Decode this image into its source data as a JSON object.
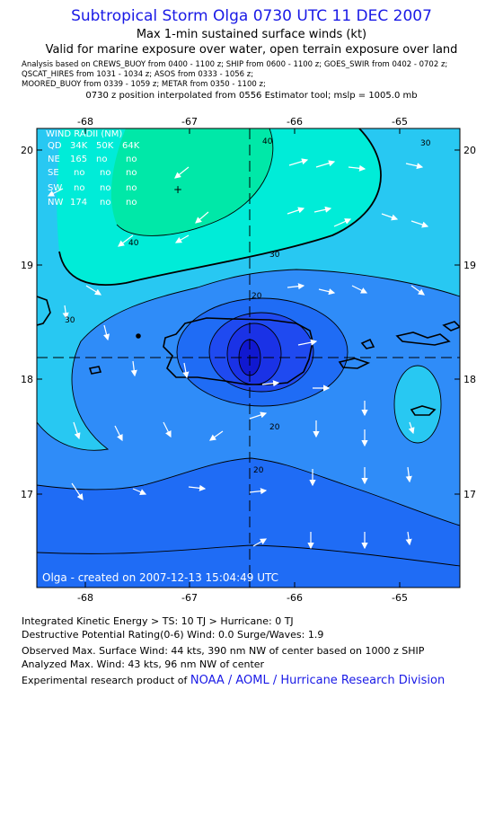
{
  "header": {
    "title": "Subtropical Storm Olga 0730 UTC 11 DEC 2007",
    "subtitle": "Max 1-min sustained surface winds (kt)",
    "valid": "Valid for marine exposure over water, open terrain exposure over land",
    "analysis_lines": [
      "Analysis based on  CREWS_BUOY from 0400 - 1100 z;  SHIP from 0600 - 1100 z;  GOES_SWIR from 0402 - 0702 z;",
      "QSCAT_HIRES from 1031 - 1034 z;  ASOS from 0333 - 1056 z;",
      "MOORED_BUOY from 0339 - 1059 z;  METAR from 0350 - 1100 z;"
    ],
    "position_note": "0730 z position interpolated from 0556 Estimator tool; mslp = 1005.0 mb"
  },
  "map": {
    "lon_labels": [
      "-68",
      "-67",
      "-66",
      "-65"
    ],
    "lat_labels": [
      "20",
      "19",
      "18",
      "17"
    ],
    "contour_labels": [
      "40",
      "30",
      "30",
      "20",
      "20",
      "20",
      "30",
      "40"
    ],
    "credit": "Olga  -  created on 2007-12-13 15:04:49 UTC",
    "colors": {
      "c15": "#1f6cf5",
      "c20": "#2f8cf8",
      "c30": "#28c8f2",
      "c40": "#00ecd8",
      "c50": "#00e8a8",
      "core1": "#1f4af0",
      "core2": "#1a32e6",
      "core3": "#1018d0"
    }
  },
  "wind_radii": {
    "header": "WIND RADII (NM)",
    "columns": [
      "QD",
      "34K",
      "50K",
      "64K"
    ],
    "rows": [
      [
        "NE",
        "165",
        "no",
        "no"
      ],
      [
        "SE",
        "no",
        "no",
        "no"
      ],
      [
        "SW",
        "no",
        "no",
        "no"
      ],
      [
        "NW",
        "174",
        "no",
        "no"
      ]
    ]
  },
  "footer": {
    "ike": "Integrated Kinetic Energy > TS: 10 TJ   > Hurricane: 0 TJ",
    "dpr": "Destructive Potential Rating(0-6)   Wind: 0.0 Surge/Waves: 1.9",
    "observed": "Observed Max. Surface Wind: 44 kts, 390 nm NW of center based on 1000 z SHIP",
    "analyzed": "Analyzed Max. Wind: 43 kts, 96 nm NW of center",
    "product_prefix": "Experimental research product of ",
    "product_org": "NOAA / AOML / Hurricane Research Division"
  }
}
